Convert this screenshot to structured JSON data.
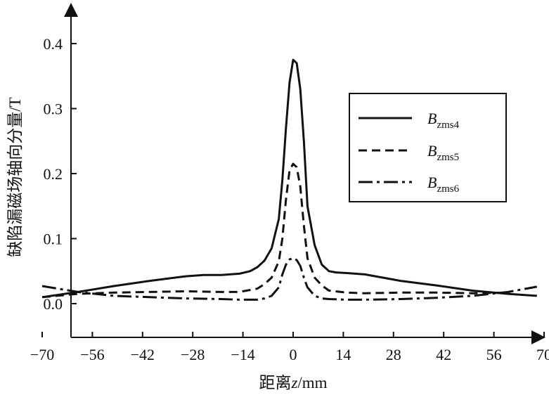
{
  "chart_data": {
    "type": "line",
    "xlabel_prefix": "距离",
    "xlabel_var": "z",
    "xlabel_unit": "/mm",
    "ylabel": "缺陷漏磁场轴向分量/T",
    "xlim": [
      -70,
      70
    ],
    "ylim": [
      -0.05,
      0.45
    ],
    "x_ticks": [
      -70,
      -56,
      -42,
      -28,
      -14,
      0,
      14,
      28,
      42,
      56,
      70
    ],
    "y_ticks": [
      0.0,
      0.1,
      0.2,
      0.3,
      0.4
    ],
    "x_tick_labels": [
      "−70",
      "−56",
      "−42",
      "−28",
      "−14",
      "0",
      "14",
      "28",
      "42",
      "56",
      "70"
    ],
    "y_tick_labels": [
      "0.0",
      "0.1",
      "0.2",
      "0.3",
      "0.4"
    ],
    "grid": false,
    "legend_position": "right",
    "series": [
      {
        "name": "Bzms4",
        "name_main": "B",
        "name_sub": "z",
        "name_suffix": "ms4",
        "style": "solid",
        "x": [
          -70,
          -60,
          -50,
          -40,
          -30,
          -25,
          -20,
          -15,
          -12,
          -10,
          -8,
          -6,
          -4,
          -3,
          -2,
          -1,
          0,
          1,
          2,
          3,
          4,
          6,
          8,
          10,
          12,
          15,
          20,
          25,
          30,
          40,
          50,
          60,
          68
        ],
        "y": [
          0.01,
          0.018,
          0.027,
          0.035,
          0.042,
          0.044,
          0.044,
          0.046,
          0.05,
          0.056,
          0.066,
          0.085,
          0.13,
          0.19,
          0.27,
          0.34,
          0.375,
          0.37,
          0.33,
          0.25,
          0.15,
          0.09,
          0.06,
          0.05,
          0.048,
          0.047,
          0.045,
          0.04,
          0.035,
          0.028,
          0.02,
          0.015,
          0.012
        ]
      },
      {
        "name": "Bzms5",
        "name_main": "B",
        "name_sub": "z",
        "name_suffix": "ms5",
        "style": "dashed",
        "x": [
          -70,
          -60,
          -50,
          -40,
          -30,
          -20,
          -15,
          -10,
          -8,
          -6,
          -4,
          -3,
          -2,
          -1,
          0,
          1,
          2,
          3,
          4,
          6,
          8,
          10,
          15,
          20,
          30,
          40,
          50,
          60
        ],
        "y": [
          0.01,
          0.015,
          0.017,
          0.018,
          0.019,
          0.018,
          0.018,
          0.023,
          0.03,
          0.04,
          0.065,
          0.1,
          0.16,
          0.205,
          0.215,
          0.21,
          0.18,
          0.12,
          0.07,
          0.04,
          0.028,
          0.02,
          0.017,
          0.016,
          0.017,
          0.017,
          0.016,
          0.017
        ]
      },
      {
        "name": "Bzms6",
        "name_main": "B",
        "name_sub": "z",
        "name_suffix": "ms6",
        "style": "dashdot",
        "x": [
          -70,
          -60,
          -50,
          -40,
          -30,
          -20,
          -15,
          -10,
          -8,
          -6,
          -4,
          -3,
          -2,
          -1,
          0,
          1,
          2,
          3,
          4,
          6,
          8,
          10,
          15,
          20,
          30,
          40,
          50,
          60,
          68
        ],
        "y": [
          0.027,
          0.018,
          0.012,
          0.01,
          0.008,
          0.007,
          0.006,
          0.006,
          0.008,
          0.012,
          0.025,
          0.045,
          0.06,
          0.068,
          0.07,
          0.067,
          0.058,
          0.04,
          0.025,
          0.012,
          0.008,
          0.007,
          0.006,
          0.006,
          0.007,
          0.009,
          0.012,
          0.018,
          0.026
        ]
      }
    ]
  }
}
